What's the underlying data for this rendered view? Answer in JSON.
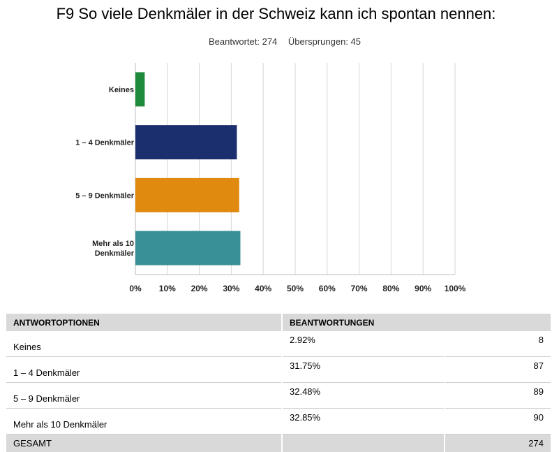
{
  "header": {
    "title": "F9 So viele Denkmäler in der Schweiz kann ich spontan nennen:",
    "answered": "Beantwortet: 274",
    "skipped": "Übersprungen: 45"
  },
  "chart_data": {
    "type": "bar",
    "orientation": "horizontal",
    "title": "F9 So viele Denkmäler in der Schweiz kann ich spontan nennen:",
    "categories": [
      "Keines",
      "1 – 4 Denkmäler",
      "5 – 9 Denkmäler",
      "Mehr als 10 Denkmäler"
    ],
    "category_labels": [
      [
        "Keines"
      ],
      [
        "1 – 4 Denkmäler"
      ],
      [
        "5 – 9 Denkmäler"
      ],
      [
        "Mehr als 10",
        "Denkmäler"
      ]
    ],
    "values": [
      2.92,
      31.75,
      32.48,
      32.85
    ],
    "colors": [
      "#1e8a3c",
      "#1b2f6e",
      "#e08a10",
      "#3a9097"
    ],
    "xlim": [
      0,
      100
    ],
    "xticks": [
      "0%",
      "10%",
      "20%",
      "30%",
      "40%",
      "50%",
      "60%",
      "70%",
      "80%",
      "90%",
      "100%"
    ],
    "grid": true
  },
  "table": {
    "headers": [
      "ANTWORTOPTIONEN",
      "BEANTWORTUNGEN"
    ],
    "rows": [
      {
        "option": "Keines",
        "percent": "2.92%",
        "count": "8"
      },
      {
        "option": "1 – 4 Denkmäler",
        "percent": "31.75%",
        "count": "87"
      },
      {
        "option": "5 – 9 Denkmäler",
        "percent": "32.48%",
        "count": "89"
      },
      {
        "option": "Mehr als 10 Denkmäler",
        "percent": "32.85%",
        "count": "90"
      }
    ],
    "total": {
      "label": "GESAMT",
      "count": "274"
    }
  }
}
